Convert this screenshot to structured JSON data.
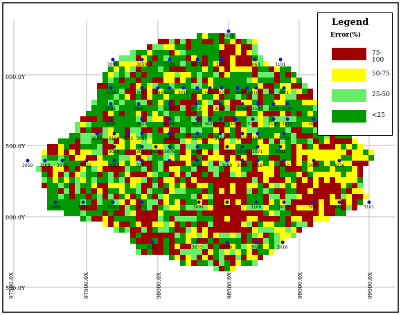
{
  "legend": {
    "title": "Legend",
    "subtitle": "Error(%)",
    "items": [
      {
        "label": "75-100",
        "color": "#a00000"
      },
      {
        "label": "50-75",
        "color": "#ffff00"
      },
      {
        "label": "25-50",
        "color": "#66ee66"
      },
      {
        "label": "<25",
        "color": "#009900"
      }
    ]
  },
  "y_labels": [
    "000.0Y",
    "500.0Y",
    "000.0Y",
    "500.0Y"
  ],
  "x_labels": [
    "97500.0X",
    "97500.0X",
    "98000.0X",
    "98500.0X",
    "99000.0X",
    "99500.0X"
  ],
  "stations": [
    {
      "id": "3071"
    },
    {
      "id": "3091"
    },
    {
      "id": "3059"
    },
    {
      "id": "3109"
    },
    {
      "id": "3072"
    },
    {
      "id": "3062"
    },
    {
      "id": "3063"
    },
    {
      "id": "3101"
    },
    {
      "id": "3104"
    },
    {
      "id": "3033"
    },
    {
      "id": "3090"
    },
    {
      "id": "3020"
    },
    {
      "id": "3018"
    },
    {
      "id": "3032"
    },
    {
      "id": "3026"
    },
    {
      "id": "3076"
    },
    {
      "id": "3089"
    },
    {
      "id": "3114"
    },
    {
      "id": "3100"
    }
  ],
  "colors": {
    "red": "#a00000",
    "yellow": "#ffff00",
    "light_green": "#66ee66",
    "green": "#009900",
    "grid": "#bdbdbd",
    "station": "#1020c0"
  }
}
